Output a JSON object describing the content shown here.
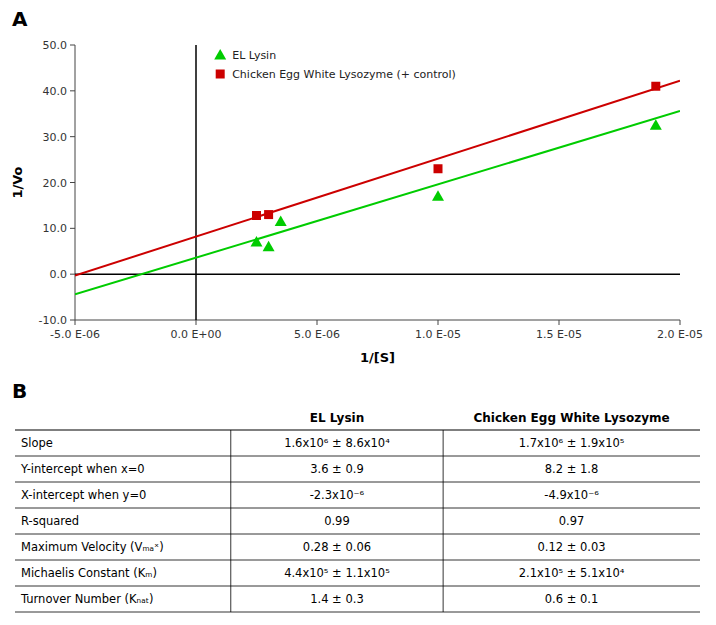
{
  "chart_data": [
    {
      "type": "scatter",
      "title": "A",
      "x_label": "1/[S]",
      "y_label": "1/Vo",
      "series": [
        {
          "name": "EL Lysin",
          "type": "scatter",
          "marker": "triangle",
          "color": "#00CC00",
          "x": [
            2.5e-06,
            3e-06,
            3.5e-06,
            1e-05,
            1.9e-05
          ],
          "values": [
            7.0,
            6.0,
            11.5,
            17.0,
            32.5
          ]
        },
        {
          "name": "Chicken Egg White Lysozyme (+ control)",
          "type": "scatter",
          "marker": "square",
          "color": "#CC0000",
          "x": [
            2.5e-06,
            3e-06,
            1e-05,
            1.9e-05
          ],
          "values": [
            12.8,
            13.0,
            23.0,
            41.0
          ]
        },
        {
          "type": "line",
          "line_style": "solid",
          "color": "#00CC00",
          "x": [
            -5e-06,
            2e-05
          ],
          "values": [
            -4.4,
            35.6
          ]
        },
        {
          "type": "line",
          "line_style": "solid",
          "color": "#CC0000",
          "x": [
            -5e-06,
            2e-05
          ],
          "values": [
            -0.3,
            42.2
          ]
        }
      ],
      "xlim": [
        -5e-06,
        2e-05
      ],
      "ylim": [
        -10.0,
        50.0
      ],
      "xticks": [
        {
          "value": -5e-06,
          "label": "-5.0 E-06"
        },
        {
          "value": 0,
          "label": "0.0 E+00"
        },
        {
          "value": 5e-06,
          "label": "5.0 E-06"
        },
        {
          "value": 1e-05,
          "label": "1.0 E-05"
        },
        {
          "value": 1.5e-05,
          "label": "1.5 E-05"
        },
        {
          "value": 2e-05,
          "label": "2.0 E-05"
        }
      ],
      "yticks": [
        {
          "value": -10.0,
          "label": "-10.0"
        },
        {
          "value": 0.0,
          "label": "0.0"
        },
        {
          "value": 10.0,
          "label": "10.0"
        },
        {
          "value": 20.0,
          "label": "20.0"
        },
        {
          "value": 30.0,
          "label": "30.0"
        },
        {
          "value": 40.0,
          "label": "40.0"
        },
        {
          "value": 50.0,
          "label": "50.0"
        }
      ],
      "grid": false,
      "legend": "upper left"
    },
    {
      "type": "table",
      "title": "B",
      "columns": [
        "EL Lysin",
        "Chicken Egg White Lysozyme"
      ],
      "rows": [
        [
          "Slope",
          "1.6x10⁶ ± 8.6x10⁴",
          "1.7x10⁶ ± 1.9x10⁵"
        ],
        [
          "Y-intercept when x=0",
          "3.6 ± 0.9",
          "8.2 ± 1.8"
        ],
        [
          "X-intercept when y=0",
          "-2.3x10⁻⁶",
          "-4.9x10⁻⁶"
        ],
        [
          "R-squared",
          "0.99",
          "0.97"
        ],
        [
          "Maximum Velocity (Vₘₐˣ)",
          "0.28 ± 0.06",
          "0.12 ± 0.03"
        ],
        [
          "Michaelis Constant (Kₘ)",
          "4.4x10⁵ ± 1.1x10⁵",
          "2.1x10⁵ ± 5.1x10⁴"
        ],
        [
          "Turnover Number (Kₙₐₜ)",
          "1.4 ± 0.3",
          "0.6 ± 0.1"
        ]
      ]
    }
  ]
}
